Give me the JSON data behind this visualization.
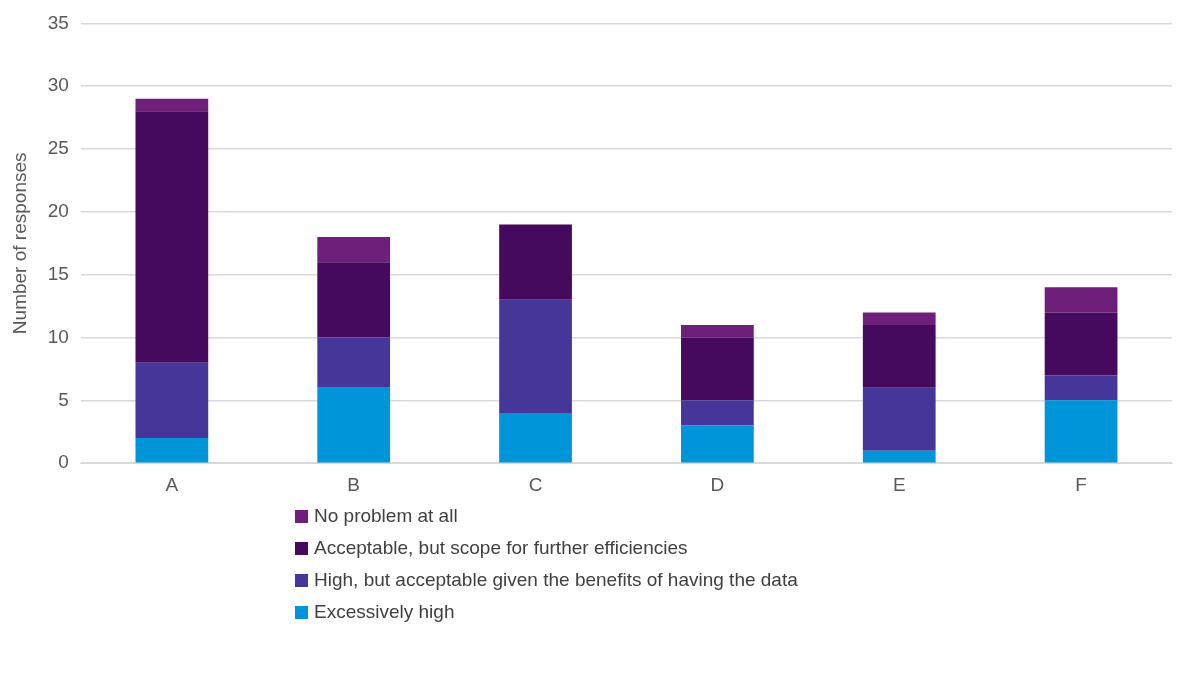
{
  "chart_data": {
    "type": "bar",
    "stacked": true,
    "ylabel": "Number of responses",
    "categories": [
      "A",
      "B",
      "C",
      "D",
      "E",
      "F"
    ],
    "ylim": [
      0,
      35
    ],
    "yticks": [
      0,
      5,
      10,
      15,
      20,
      25,
      30,
      35
    ],
    "grid": "y",
    "legend": "bottom",
    "series": [
      {
        "name": "Excessively high",
        "color": "#0095d9",
        "values": [
          2,
          6,
          4,
          3,
          1,
          5
        ]
      },
      {
        "name": "High, but acceptable given the benefits of having the data",
        "color": "#46369a",
        "values": [
          6,
          4,
          9,
          2,
          5,
          2
        ]
      },
      {
        "name": "Acceptable, but scope for further efficiencies",
        "color": "#450a5e",
        "values": [
          20,
          6,
          6,
          5,
          5,
          5
        ]
      },
      {
        "name": "No problem at all",
        "color": "#6d1f7a",
        "values": [
          1,
          2,
          0,
          1,
          1,
          2
        ]
      }
    ]
  }
}
